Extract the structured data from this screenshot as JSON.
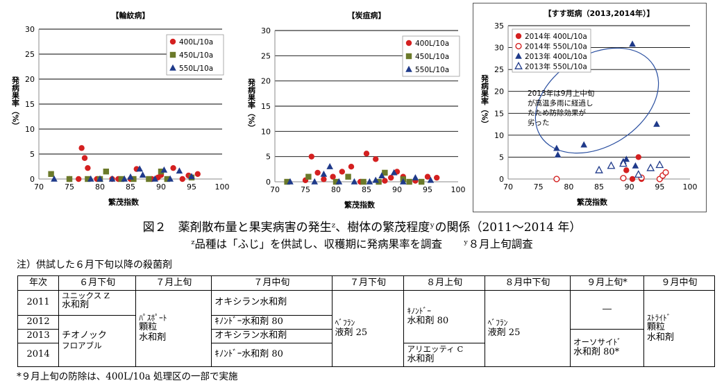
{
  "chart_data": [
    {
      "type": "scatter",
      "title": "【輪紋病】",
      "xlabel": "繁茂指数",
      "ylabel": "発病果率（%）",
      "xlim": [
        70,
        100
      ],
      "ylim": [
        0,
        30
      ],
      "xticks": [
        70,
        75,
        80,
        85,
        90,
        95,
        100
      ],
      "yticks": [
        0,
        5,
        10,
        15,
        20,
        25,
        30
      ],
      "legend_position": "top-right",
      "series": [
        {
          "name": "400L/10a",
          "marker": "circle",
          "color": "#d42020",
          "points": [
            [
              75,
              0
            ],
            [
              76.5,
              0
            ],
            [
              77,
              6.2
            ],
            [
              77.5,
              4.2
            ],
            [
              78,
              2.2
            ],
            [
              79.5,
              0
            ],
            [
              82,
              0
            ],
            [
              83,
              0
            ],
            [
              85,
              0
            ],
            [
              86,
              2
            ],
            [
              88.5,
              0
            ],
            [
              89.5,
              0.3
            ],
            [
              90,
              0.8
            ],
            [
              92,
              2.2
            ],
            [
              93.5,
              0
            ],
            [
              94.5,
              0.7
            ],
            [
              96,
              1
            ]
          ]
        },
        {
          "name": "450L/10a",
          "marker": "square",
          "color": "#6b7a2a",
          "points": [
            [
              72,
              1
            ],
            [
              75,
              0
            ],
            [
              78,
              0
            ],
            [
              80,
              0
            ],
            [
              81,
              1.5
            ],
            [
              83.5,
              0
            ],
            [
              85.5,
              0
            ],
            [
              88,
              0
            ],
            [
              90,
              1.5
            ],
            [
              91,
              0
            ],
            [
              95,
              0.3
            ]
          ]
        },
        {
          "name": "550L/10a",
          "marker": "triangle",
          "color": "#1f3a8a",
          "points": [
            [
              72.5,
              0
            ],
            [
              78.5,
              0
            ],
            [
              80,
              0
            ],
            [
              82,
              0
            ],
            [
              84,
              0
            ],
            [
              85,
              0.4
            ],
            [
              86.5,
              2
            ],
            [
              87,
              0.8
            ],
            [
              89,
              0
            ],
            [
              90.5,
              1.8
            ],
            [
              91.5,
              0
            ],
            [
              93,
              1.6
            ],
            [
              95,
              0.5
            ]
          ]
        }
      ]
    },
    {
      "type": "scatter",
      "title": "【炭疽病】",
      "xlabel": "繁茂指数",
      "ylabel": "発病果率（%）",
      "xlim": [
        70,
        100
      ],
      "ylim": [
        0,
        30
      ],
      "xticks": [
        70,
        75,
        80,
        85,
        90,
        95,
        100
      ],
      "yticks": [
        0,
        5,
        10,
        15,
        20,
        25,
        30
      ],
      "legend_position": "top-right",
      "series": [
        {
          "name": "400L/10a",
          "marker": "circle",
          "color": "#d42020",
          "points": [
            [
              75,
              0.3
            ],
            [
              76,
              5
            ],
            [
              77,
              1.8
            ],
            [
              78,
              0.5
            ],
            [
              79.5,
              1
            ],
            [
              81,
              2
            ],
            [
              82.5,
              3
            ],
            [
              84,
              0
            ],
            [
              85,
              5.6
            ],
            [
              86.5,
              4.5
            ],
            [
              88,
              0.2
            ],
            [
              89,
              0.8
            ],
            [
              90,
              2
            ],
            [
              91,
              1
            ],
            [
              93,
              0.2
            ],
            [
              95,
              1
            ],
            [
              96.5,
              0.8
            ]
          ]
        },
        {
          "name": "450L/10a",
          "marker": "square",
          "color": "#6b7a2a",
          "points": [
            [
              72,
              0
            ],
            [
              75.5,
              1
            ],
            [
              80,
              0
            ],
            [
              82,
              1
            ],
            [
              84.5,
              0
            ],
            [
              87,
              0
            ],
            [
              88,
              1.8
            ],
            [
              91,
              0.5
            ],
            [
              92,
              0
            ],
            [
              94,
              0
            ]
          ]
        },
        {
          "name": "550L/10a",
          "marker": "triangle",
          "color": "#1f3a8a",
          "points": [
            [
              72.5,
              0
            ],
            [
              76.5,
              0
            ],
            [
              78,
              1.5
            ],
            [
              79,
              3
            ],
            [
              80.5,
              0
            ],
            [
              83,
              0
            ],
            [
              85.5,
              0
            ],
            [
              86.5,
              0.3
            ],
            [
              87.5,
              1.2
            ],
            [
              89.5,
              1.8
            ],
            [
              91,
              0
            ],
            [
              93,
              0.8
            ],
            [
              95.5,
              0.3
            ]
          ]
        }
      ]
    },
    {
      "type": "scatter",
      "title": "【すす斑病（2013,2014年）】",
      "xlabel": "繁茂指数",
      "ylabel": "発病果率（%）",
      "xlim": [
        70,
        100
      ],
      "ylim": [
        0,
        35
      ],
      "xticks": [
        70,
        75,
        80,
        85,
        90,
        95,
        100
      ],
      "yticks": [
        0,
        5,
        10,
        15,
        20,
        25,
        30,
        35
      ],
      "legend_position": "top-left",
      "annotation": [
        "2013年は9月上中旬",
        "が高温多雨に経過し",
        "たため防除効果が",
        "劣った"
      ],
      "series": [
        {
          "name": "2014年 400L/10a",
          "marker": "circle",
          "color": "#d42020",
          "points": [
            [
              89.5,
              2
            ],
            [
              90.5,
              0
            ],
            [
              91.5,
              5
            ],
            [
              92,
              0
            ]
          ]
        },
        {
          "name": "2014年 550L/10a",
          "marker": "circle-open",
          "color": "#d42020",
          "points": [
            [
              78,
              0
            ],
            [
              89,
              0.2
            ],
            [
              92,
              0.3
            ],
            [
              95,
              0
            ],
            [
              95.5,
              0.8
            ],
            [
              96,
              1.5
            ]
          ]
        },
        {
          "name": "2013年 400L/10a",
          "marker": "triangle",
          "color": "#1f3a8a",
          "points": [
            [
              78,
              7
            ],
            [
              78.2,
              5.5
            ],
            [
              82.5,
              7.8
            ],
            [
              89,
              4
            ],
            [
              89.5,
              4.5
            ],
            [
              90.5,
              30.8
            ],
            [
              91,
              3
            ],
            [
              94.5,
              12.5
            ]
          ]
        },
        {
          "name": "2013年 550L/10a",
          "marker": "triangle-open",
          "color": "#1f3a8a",
          "points": [
            [
              85,
              2
            ],
            [
              87,
              3
            ],
            [
              89,
              3.5
            ],
            [
              91.5,
              1
            ],
            [
              93.5,
              2.5
            ],
            [
              95,
              3.2
            ]
          ]
        }
      ]
    }
  ],
  "caption": {
    "line1": "図２　薬剤散布量と果実病害の発生ᶻ、樹体の繁茂程度ʸの関係（2011～2014 年）",
    "line2": "ᶻ品種は「ふじ」を供試し、収穫期に発病果率を調査　　ʸ８月上旬調査"
  },
  "note": "注）供試した６月下旬以降の殺菌剤",
  "table": {
    "headers": [
      "年次",
      "６月下旬",
      "７月上旬",
      "７月中旬",
      "７月下旬",
      "８月上旬",
      "８月中下旬",
      "９月上旬*",
      "９月中旬"
    ],
    "years": [
      "2011",
      "2012",
      "2013",
      "2014"
    ],
    "jun_2011": [
      "ユニックス Z",
      "水和剤"
    ],
    "jun_2012_14": [
      "チオノック",
      "フロアブル"
    ],
    "jul_early": [
      "ﾊﾟｽﾎﾟｰﾄ",
      "顆粒",
      "水和剤"
    ],
    "jul_mid": [
      "オキシラン水和剤",
      "ｷﾉﾝﾄﾞｰ水和剤 80",
      "オキシラン水和剤",
      "ｷﾉﾝﾄﾞｰ水和剤 80"
    ],
    "jul_late": [
      "ﾍﾞﾌﾗﾝ",
      "液剤 25"
    ],
    "aug_early_a": [
      "ｷﾉﾝﾄﾞｰ",
      "水和剤 80"
    ],
    "aug_early_b": [
      "アリエッティ C",
      "水和剤"
    ],
    "aug_mid": [
      "ﾍﾞﾌﾗﾝ",
      "液剤 25"
    ],
    "sep_early_a": "―",
    "sep_early_b": [
      "オーソサイﾄﾞ",
      "水和剤 80*"
    ],
    "sep_mid": [
      "ｽﾄﾗｲﾄﾞ",
      "顆粒",
      "水和剤"
    ]
  },
  "footnote": "*９月上旬の防除は、400L/10a 処理区の一部で実施"
}
